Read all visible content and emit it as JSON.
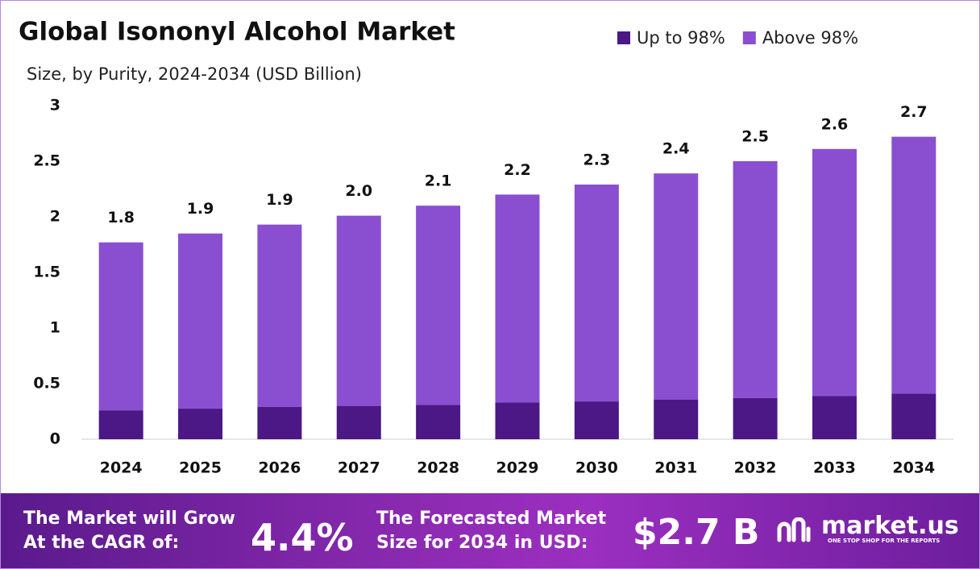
{
  "chart_data": {
    "type": "stacked-bar",
    "title": "Global Isononyl Alcohol Market",
    "subtitle": "Size, by Purity, 2024-2034 (USD Billion)",
    "categories": [
      "2024",
      "2025",
      "2026",
      "2027",
      "2028",
      "2029",
      "2030",
      "2031",
      "2032",
      "2033",
      "2034"
    ],
    "series": [
      {
        "name": "Up to 98%",
        "color": "#4b1885",
        "values": [
          0.26,
          0.275,
          0.29,
          0.3,
          0.31,
          0.33,
          0.34,
          0.355,
          0.37,
          0.39,
          0.41
        ]
      },
      {
        "name": "Above 98%",
        "color": "#8a4fd0",
        "values": [
          1.51,
          1.575,
          1.64,
          1.71,
          1.79,
          1.87,
          1.95,
          2.035,
          2.13,
          2.22,
          2.31
        ]
      }
    ],
    "totals": [
      1.77,
      1.85,
      1.93,
      2.01,
      2.1,
      2.2,
      2.29,
      2.39,
      2.5,
      2.61,
      2.72
    ],
    "total_labels": [
      "1.8",
      "1.9",
      "1.9",
      "2.0",
      "2.1",
      "2.2",
      "2.3",
      "2.4",
      "2.5",
      "2.6",
      "2.7"
    ],
    "ylim": [
      0,
      3
    ],
    "yticks": [
      0,
      0.5,
      1,
      1.5,
      2,
      2.5,
      3
    ],
    "grid": false,
    "legend": "top-right"
  },
  "footer": {
    "cagr_text_1": "The Market will Grow",
    "cagr_text_2": "At the CAGR of:",
    "cagr_value": "4.4%",
    "size_text_1": "The Forecasted Market",
    "size_text_2": "Size for 2034 in USD:",
    "size_value": "$2.7 B",
    "brand": "market.us",
    "brand_tagline": "ONE STOP SHOP FOR THE REPORTS"
  }
}
